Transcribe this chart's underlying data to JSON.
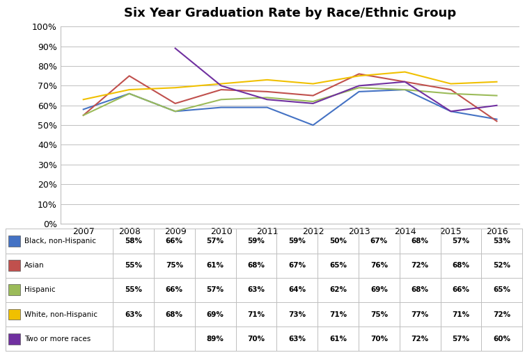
{
  "title": "Six Year Graduation Rate by Race/Ethnic Group",
  "years": [
    2007,
    2008,
    2009,
    2010,
    2011,
    2012,
    2013,
    2014,
    2015,
    2016
  ],
  "series": [
    {
      "label": "Black, non-Hispanic",
      "color": "#4472C4",
      "values": [
        58,
        66,
        57,
        59,
        59,
        50,
        67,
        68,
        57,
        53
      ]
    },
    {
      "label": "Asian",
      "color": "#C0504D",
      "values": [
        55,
        75,
        61,
        68,
        67,
        65,
        76,
        72,
        68,
        52
      ]
    },
    {
      "label": "Hispanic",
      "color": "#9BBB59",
      "values": [
        55,
        66,
        57,
        63,
        64,
        62,
        69,
        68,
        66,
        65
      ]
    },
    {
      "label": "White, non-Hispanic",
      "color": "#F0C000",
      "values": [
        63,
        68,
        69,
        71,
        73,
        71,
        75,
        77,
        71,
        72
      ]
    },
    {
      "label": "Two or more races",
      "color": "#7030A0",
      "values": [
        null,
        null,
        89,
        70,
        63,
        61,
        70,
        72,
        57,
        60
      ]
    }
  ],
  "table_rows": [
    [
      "Black, non-Hispanic",
      "58%",
      "66%",
      "57%",
      "59%",
      "59%",
      "50%",
      "67%",
      "68%",
      "57%",
      "53%"
    ],
    [
      "Asian",
      "55%",
      "75%",
      "61%",
      "68%",
      "67%",
      "65%",
      "76%",
      "72%",
      "68%",
      "52%"
    ],
    [
      "Hispanic",
      "55%",
      "66%",
      "57%",
      "63%",
      "64%",
      "62%",
      "69%",
      "68%",
      "66%",
      "65%"
    ],
    [
      "White, non-Hispanic",
      "63%",
      "68%",
      "69%",
      "71%",
      "73%",
      "71%",
      "75%",
      "77%",
      "71%",
      "72%"
    ],
    [
      "Two or more races",
      "",
      "",
      "89%",
      "70%",
      "63%",
      "61%",
      "70%",
      "72%",
      "57%",
      "60%"
    ]
  ],
  "row_colors": [
    "#4472C4",
    "#C0504D",
    "#9BBB59",
    "#F0C000",
    "#7030A0"
  ],
  "ylim": [
    0,
    100
  ],
  "yticks": [
    0,
    10,
    20,
    30,
    40,
    50,
    60,
    70,
    80,
    90,
    100
  ],
  "background_color": "#FFFFFF",
  "grid_color": "#BFBFBF",
  "line_color": "#BFBFBF"
}
